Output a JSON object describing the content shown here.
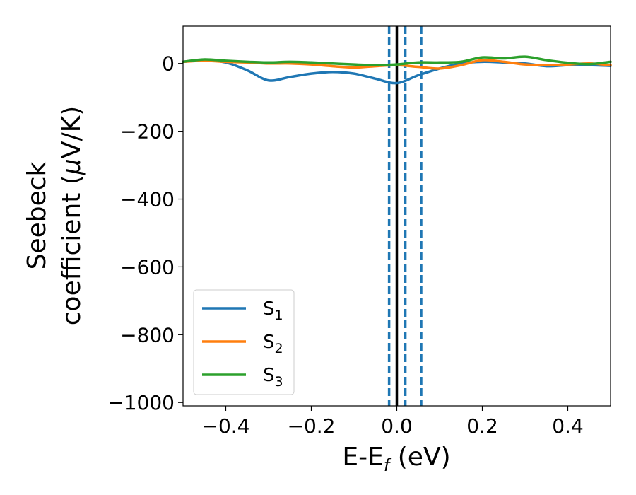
{
  "chart_data": {
    "type": "line",
    "xlabel": {
      "main": "E-E",
      "sub": "f",
      "unit": " (eV)"
    },
    "ylabel": {
      "line1": "Seebeck",
      "line2_prefix": "coefficient  (",
      "mu": "μ",
      "line2_suffix": "V/K)"
    },
    "xlim": [
      -0.5,
      0.5
    ],
    "ylim": [
      -1010,
      110
    ],
    "xticks": [
      -0.4,
      -0.2,
      0.0,
      0.2,
      0.4
    ],
    "xtick_labels": [
      "−0.4",
      "−0.2",
      "0.0",
      "0.2",
      "0.4"
    ],
    "yticks": [
      0,
      -200,
      -400,
      -600,
      -800,
      -1000
    ],
    "ytick_labels": [
      "0",
      "−200",
      "−400",
      "−600",
      "−800",
      "−1000"
    ],
    "grid": false,
    "legend_position": "lower-left",
    "fermi_level_line": {
      "x": 0.0,
      "color": "#000000",
      "style": "solid"
    },
    "reference_lines": [
      {
        "x": -0.018,
        "color": "#1f77b4",
        "style": "dashed"
      },
      {
        "x": 0.02,
        "color": "#1f77b4",
        "style": "dashed"
      },
      {
        "x": 0.057,
        "color": "#1f77b4",
        "style": "dashed"
      }
    ],
    "series": [
      {
        "name": "S",
        "sub": "1",
        "color": "#1f77b4",
        "x": [
          -0.5,
          -0.45,
          -0.4,
          -0.35,
          -0.3,
          -0.25,
          -0.2,
          -0.15,
          -0.1,
          -0.05,
          0.0,
          0.05,
          0.1,
          0.15,
          0.2,
          0.25,
          0.3,
          0.35,
          0.4,
          0.45,
          0.5
        ],
        "y": [
          5,
          10,
          3,
          -20,
          -50,
          -40,
          -30,
          -25,
          -30,
          -45,
          -58,
          -35,
          -15,
          0,
          5,
          3,
          0,
          -8,
          -5,
          -5,
          -7
        ]
      },
      {
        "name": "S",
        "sub": "2",
        "color": "#ff7f0e",
        "x": [
          -0.5,
          -0.45,
          -0.4,
          -0.35,
          -0.3,
          -0.25,
          -0.2,
          -0.15,
          -0.1,
          -0.05,
          0.0,
          0.05,
          0.1,
          0.15,
          0.2,
          0.25,
          0.3,
          0.35,
          0.4,
          0.45,
          0.5
        ],
        "y": [
          5,
          8,
          5,
          3,
          0,
          0,
          -3,
          -8,
          -12,
          -8,
          -5,
          -10,
          -15,
          -5,
          10,
          5,
          -3,
          -5,
          -3,
          0,
          -5
        ]
      },
      {
        "name": "S",
        "sub": "3",
        "color": "#2ca02c",
        "x": [
          -0.5,
          -0.45,
          -0.4,
          -0.35,
          -0.3,
          -0.25,
          -0.2,
          -0.15,
          -0.1,
          -0.05,
          0.0,
          0.05,
          0.1,
          0.15,
          0.2,
          0.25,
          0.3,
          0.35,
          0.4,
          0.45,
          0.5
        ],
        "y": [
          5,
          12,
          8,
          5,
          3,
          5,
          3,
          0,
          -3,
          -5,
          -3,
          3,
          3,
          5,
          18,
          15,
          20,
          10,
          2,
          -2,
          5
        ]
      }
    ]
  }
}
